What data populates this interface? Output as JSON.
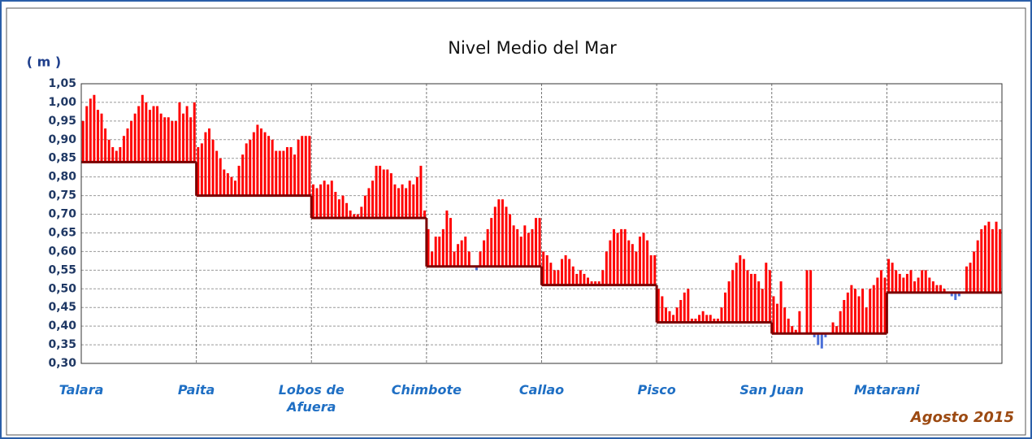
{
  "chart_data": {
    "type": "bar",
    "title": "Nivel Medio del Mar",
    "y_label": "( m )",
    "note": "Agosto 2015",
    "ylim": [
      0.3,
      1.05
    ],
    "yticks": [
      {
        "value": 0.3,
        "label": "0,30"
      },
      {
        "value": 0.35,
        "label": "0,35"
      },
      {
        "value": 0.4,
        "label": "0,40"
      },
      {
        "value": 0.45,
        "label": "0,45"
      },
      {
        "value": 0.5,
        "label": "0,50"
      },
      {
        "value": 0.55,
        "label": "0,55"
      },
      {
        "value": 0.6,
        "label": "0,60"
      },
      {
        "value": 0.65,
        "label": "0,65"
      },
      {
        "value": 0.7,
        "label": "0,70"
      },
      {
        "value": 0.75,
        "label": "0,75"
      },
      {
        "value": 0.8,
        "label": "0,80"
      },
      {
        "value": 0.85,
        "label": "0,85"
      },
      {
        "value": 0.9,
        "label": "0,90"
      },
      {
        "value": 0.95,
        "label": "0,95"
      },
      {
        "value": 1.0,
        "label": "1,00"
      },
      {
        "value": 1.05,
        "label": "1,05"
      }
    ],
    "grid": true,
    "color": "#ff0000",
    "below_color": "#4a6fd8",
    "mean_color": "#7a0000",
    "stations": [
      {
        "name": "Talara",
        "mean": 0.84,
        "values": [
          0.95,
          0.99,
          1.01,
          1.02,
          0.98,
          0.97,
          0.93,
          0.9,
          0.88,
          0.87,
          0.88,
          0.91,
          0.93,
          0.95,
          0.97,
          0.99,
          1.02,
          1.0,
          0.98,
          0.99,
          0.99,
          0.97,
          0.96,
          0.96,
          0.95,
          0.95,
          1.0,
          0.97,
          0.99,
          0.96,
          1.0
        ]
      },
      {
        "name": "Paita",
        "mean": 0.75,
        "values": [
          0.88,
          0.89,
          0.92,
          0.93,
          0.9,
          0.87,
          0.85,
          0.82,
          0.81,
          0.8,
          0.79,
          0.83,
          0.86,
          0.89,
          0.9,
          0.92,
          0.94,
          0.93,
          0.92,
          0.91,
          0.9,
          0.87,
          0.87,
          0.87,
          0.88,
          0.88,
          0.86,
          0.9,
          0.91,
          0.91,
          0.91
        ]
      },
      {
        "name": "Lobos de Afuera",
        "mean": 0.69,
        "values": [
          0.78,
          0.77,
          0.78,
          0.79,
          0.78,
          0.79,
          0.76,
          0.74,
          0.75,
          0.73,
          0.71,
          0.7,
          0.7,
          0.72,
          0.75,
          0.77,
          0.79,
          0.83,
          0.83,
          0.82,
          0.82,
          0.81,
          0.78,
          0.77,
          0.78,
          0.77,
          0.79,
          0.78,
          0.8,
          0.83,
          0.71
        ]
      },
      {
        "name": "Chimbote",
        "mean": 0.56,
        "values": [
          0.66,
          0.6,
          0.64,
          0.64,
          0.66,
          0.71,
          0.69,
          0.6,
          0.62,
          0.63,
          0.64,
          0.6,
          0.56,
          0.55,
          0.6,
          0.63,
          0.66,
          0.69,
          0.72,
          0.74,
          0.74,
          0.72,
          0.7,
          0.67,
          0.66,
          0.64,
          0.67,
          0.65,
          0.66,
          0.69,
          0.69
        ]
      },
      {
        "name": "Callao",
        "mean": 0.51,
        "values": [
          0.6,
          0.59,
          0.57,
          0.55,
          0.55,
          0.58,
          0.59,
          0.58,
          0.56,
          0.54,
          0.55,
          0.54,
          0.53,
          0.52,
          0.52,
          0.52,
          0.55,
          0.6,
          0.63,
          0.66,
          0.65,
          0.66,
          0.66,
          0.63,
          0.62,
          0.6,
          0.64,
          0.65,
          0.63,
          0.59,
          0.59
        ]
      },
      {
        "name": "Pisco",
        "mean": 0.41,
        "values": [
          0.5,
          0.48,
          0.45,
          0.44,
          0.43,
          0.45,
          0.47,
          0.49,
          0.5,
          0.42,
          0.42,
          0.43,
          0.44,
          0.43,
          0.43,
          0.42,
          0.42,
          0.45,
          0.49,
          0.52,
          0.55,
          0.57,
          0.59,
          0.58,
          0.55,
          0.54,
          0.54,
          0.52,
          0.5,
          0.57,
          0.55
        ]
      },
      {
        "name": "San Juan",
        "mean": 0.38,
        "values": [
          0.48,
          0.46,
          0.52,
          0.45,
          0.42,
          0.4,
          0.39,
          0.44,
          0.38,
          0.55,
          0.55,
          0.37,
          0.35,
          0.34,
          0.37,
          0.38,
          0.41,
          0.4,
          0.44,
          0.47,
          0.49,
          0.51,
          0.5,
          0.48,
          0.5,
          0.45,
          0.5,
          0.51,
          0.53,
          0.55,
          0.53
        ]
      },
      {
        "name": "Matarani",
        "mean": 0.49,
        "values": [
          0.58,
          0.57,
          0.55,
          0.54,
          0.53,
          0.54,
          0.55,
          0.52,
          0.53,
          0.55,
          0.55,
          0.53,
          0.52,
          0.51,
          0.51,
          0.5,
          0.49,
          0.48,
          0.47,
          0.48,
          0.49,
          0.56,
          0.57,
          0.6,
          0.63,
          0.66,
          0.67,
          0.68,
          0.66,
          0.68,
          0.66
        ]
      }
    ]
  }
}
